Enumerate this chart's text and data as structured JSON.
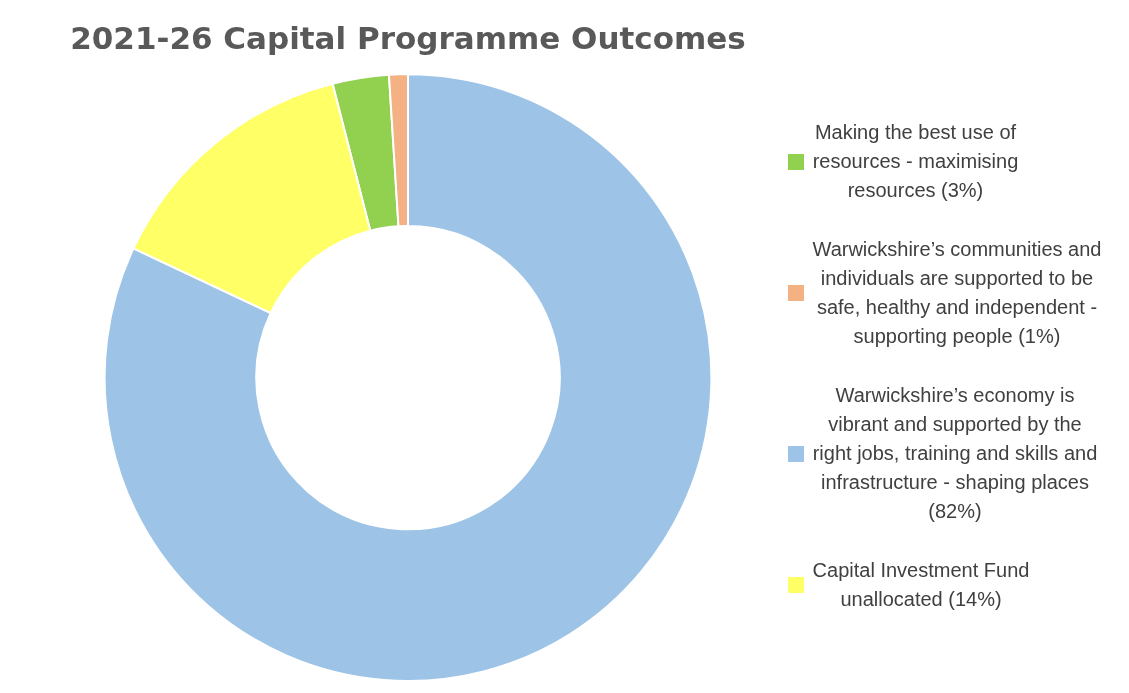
{
  "chart_data": {
    "type": "donut",
    "title": "2021-26 Capital Programme Outcomes",
    "categories": [
      "Making the best use of resources - maximising resources (3%)",
      "Warwickshire’s communities and individuals are supported to be safe, healthy and independent - supporting people (1%)",
      "Warwickshire’s economy is vibrant and supported by the right jobs, training and skills and infrastructure - shaping places (82%)",
      "Capital Investment Fund unallocated (14%)"
    ],
    "values": [
      3,
      1,
      82,
      14
    ],
    "colors": [
      "#92d050",
      "#f4b183",
      "#9dc3e6",
      "#ffff66"
    ],
    "legend": "right"
  }
}
